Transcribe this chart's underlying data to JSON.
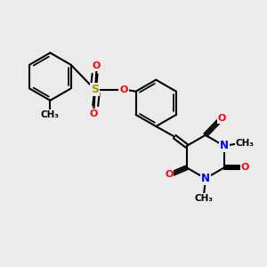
{
  "background_color": "#ebebeb",
  "bond_color": "#000000",
  "bond_width": 1.5,
  "atom_colors": {
    "N": "#0000ff",
    "O": "#ff0000",
    "S": "#999900"
  },
  "figsize": [
    3.0,
    3.0
  ],
  "dpi": 100,
  "xlim": [
    0,
    10
  ],
  "ylim": [
    0,
    10
  ]
}
